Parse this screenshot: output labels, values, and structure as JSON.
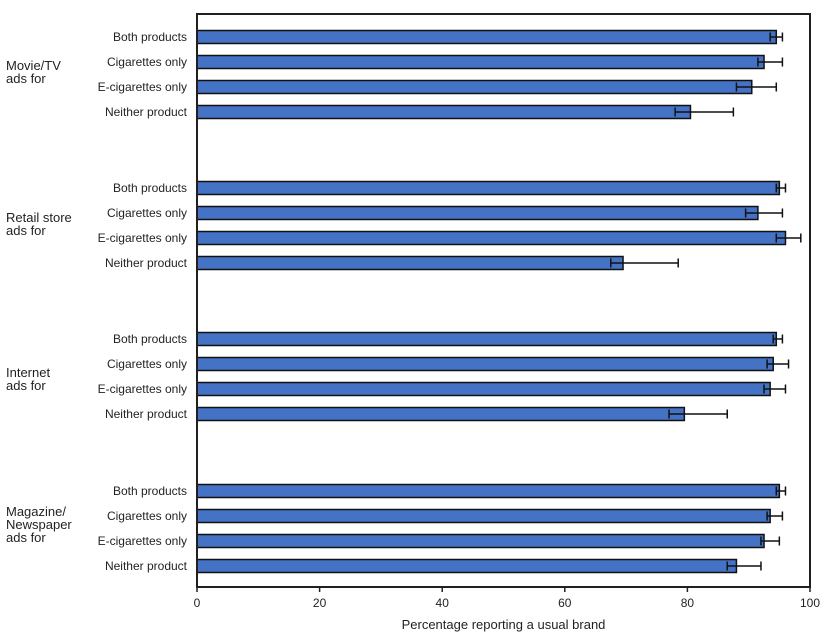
{
  "chart_data": {
    "type": "bar",
    "orientation": "horizontal",
    "xlabel": "Percentage reporting a usual brand",
    "xlim": [
      0,
      100
    ],
    "xticks": [
      "0",
      "20",
      "40",
      "60",
      "80",
      "100"
    ],
    "grid": false,
    "error_bars": true,
    "bar_color": "#4472c4",
    "groups": [
      {
        "label_lines": [
          "Movie/TV",
          "ads for"
        ],
        "bars": [
          {
            "category": "Both products",
            "value": 94.5,
            "ci": [
              93.5,
              95.5
            ]
          },
          {
            "category": "Cigarettes only",
            "value": 92.5,
            "ci": [
              91.5,
              95.5
            ]
          },
          {
            "category": "E-cigarettes only",
            "value": 90.5,
            "ci": [
              88.0,
              94.5
            ]
          },
          {
            "category": "Neither product",
            "value": 80.5,
            "ci": [
              78.0,
              87.5
            ]
          }
        ]
      },
      {
        "label_lines": [
          "Retail store",
          "ads for"
        ],
        "bars": [
          {
            "category": "Both products",
            "value": 95.0,
            "ci": [
              94.5,
              96.0
            ]
          },
          {
            "category": "Cigarettes only",
            "value": 91.5,
            "ci": [
              89.5,
              95.5
            ]
          },
          {
            "category": "E-cigarettes only",
            "value": 96.0,
            "ci": [
              94.5,
              98.5
            ]
          },
          {
            "category": "Neither product",
            "value": 69.5,
            "ci": [
              67.5,
              78.5
            ]
          }
        ]
      },
      {
        "label_lines": [
          "Internet",
          "ads for"
        ],
        "bars": [
          {
            "category": "Both products",
            "value": 94.5,
            "ci": [
              94.0,
              95.5
            ]
          },
          {
            "category": "Cigarettes only",
            "value": 94.0,
            "ci": [
              93.0,
              96.5
            ]
          },
          {
            "category": "E-cigarettes only",
            "value": 93.5,
            "ci": [
              92.5,
              96.0
            ]
          },
          {
            "category": "Neither product",
            "value": 79.5,
            "ci": [
              77.0,
              86.5
            ]
          }
        ]
      },
      {
        "label_lines": [
          "Magazine/",
          "Newspaper",
          "ads for"
        ],
        "bars": [
          {
            "category": "Both products",
            "value": 95.0,
            "ci": [
              94.5,
              96.0
            ]
          },
          {
            "category": "Cigarettes only",
            "value": 93.5,
            "ci": [
              93.0,
              95.5
            ]
          },
          {
            "category": "E-cigarettes only",
            "value": 92.5,
            "ci": [
              92.0,
              95.0
            ]
          },
          {
            "category": "Neither product",
            "value": 88.0,
            "ci": [
              86.5,
              92.0
            ]
          }
        ]
      }
    ]
  }
}
